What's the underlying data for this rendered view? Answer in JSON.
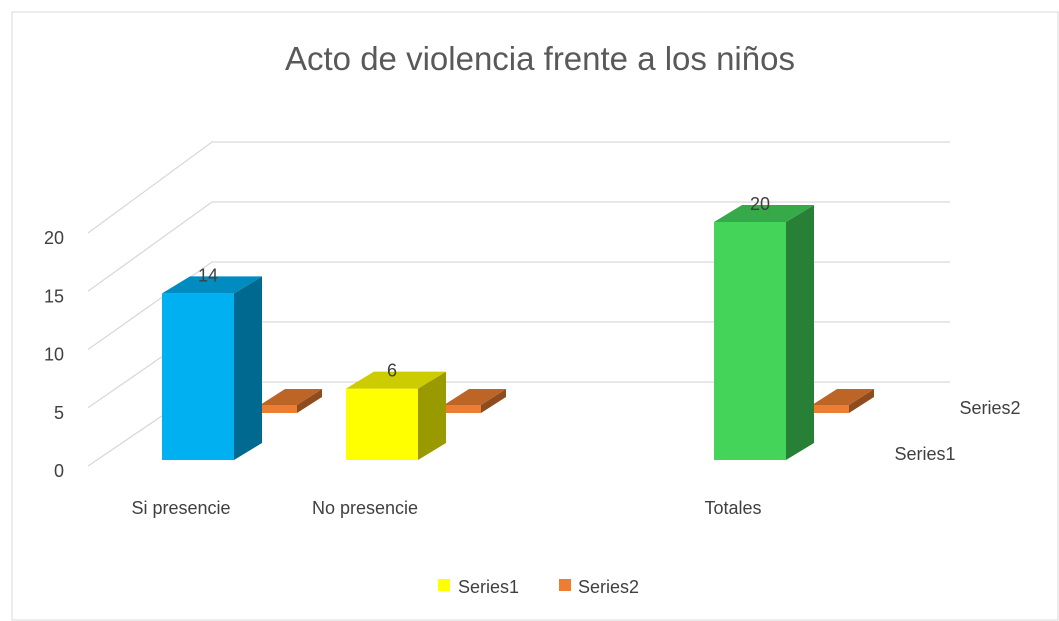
{
  "chart_data": {
    "type": "bar3d",
    "title": "Acto de violencia frente a los niños",
    "categories": [
      "Si presencie",
      "No presencie",
      null,
      "Totales"
    ],
    "series": [
      {
        "name": "Series1",
        "color": "#ffff00",
        "colors": [
          "#00b0f0",
          "#ffff00",
          null,
          "#44d45a"
        ],
        "values": [
          14,
          6,
          null,
          20
        ]
      },
      {
        "name": "Series2",
        "color": "#ed7d31",
        "values": [
          1,
          1,
          null,
          1
        ]
      }
    ],
    "ylim": [
      0,
      20
    ],
    "yticks": [
      0,
      5,
      10,
      15,
      20
    ],
    "grid": true,
    "legend": "bottom"
  }
}
